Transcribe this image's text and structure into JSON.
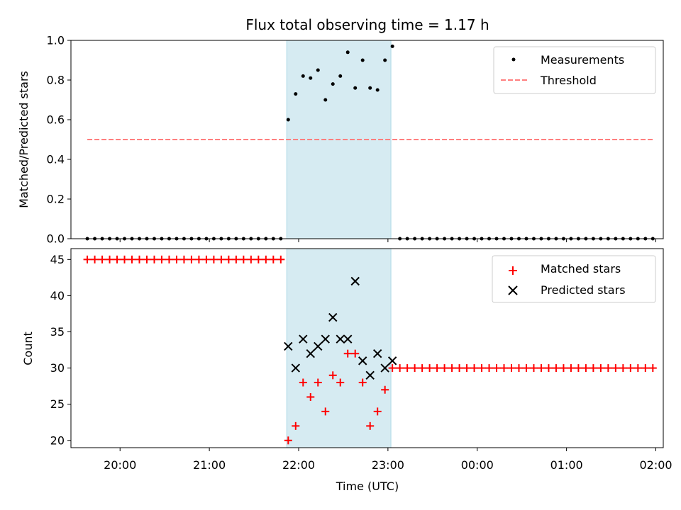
{
  "chart_data": [
    {
      "panel": "top",
      "type": "scatter",
      "title": "Flux total observing time = 1.17 h",
      "xlabel": "",
      "ylabel": "Matched/Predicted stars",
      "ylim": [
        0,
        1.0
      ],
      "yticks": [
        0.0,
        0.2,
        0.4,
        0.6,
        0.8,
        1.0
      ],
      "ytick_labels": [
        "0.0",
        "0.2",
        "0.4",
        "0.6",
        "0.8",
        "1.0"
      ],
      "shaded_interval": {
        "start": "21:52",
        "end": "23:02",
        "color": "#add8e6"
      },
      "legend": {
        "placement": "upper right",
        "entries": [
          "Measurements",
          "Threshold"
        ]
      },
      "series": [
        {
          "name": "Measurements",
          "kind": "points",
          "color": "#000000",
          "times": [
            "19:38",
            "19:43",
            "19:48",
            "19:53",
            "19:58",
            "20:03",
            "20:08",
            "20:13",
            "20:18",
            "20:23",
            "20:28",
            "20:33",
            "20:38",
            "20:43",
            "20:48",
            "20:53",
            "20:58",
            "21:03",
            "21:08",
            "21:13",
            "21:18",
            "21:23",
            "21:28",
            "21:33",
            "21:38",
            "21:43",
            "21:48",
            "21:53",
            "21:58",
            "22:03",
            "22:08",
            "22:13",
            "22:18",
            "22:23",
            "22:28",
            "22:33",
            "22:38",
            "22:43",
            "22:48",
            "22:53",
            "22:58",
            "23:03",
            "23:08",
            "23:13",
            "23:18",
            "23:23",
            "23:28",
            "23:33",
            "23:38",
            "23:43",
            "23:48",
            "23:53",
            "23:58",
            "00:03",
            "00:08",
            "00:13",
            "00:18",
            "00:23",
            "00:28",
            "00:33",
            "00:38",
            "00:43",
            "00:48",
            "00:53",
            "00:58",
            "01:03",
            "01:08",
            "01:13",
            "01:18",
            "01:23",
            "01:28",
            "01:33",
            "01:38",
            "01:43",
            "01:48",
            "01:53",
            "01:58"
          ],
          "values": [
            0,
            0,
            0,
            0,
            0,
            0,
            0,
            0,
            0,
            0,
            0,
            0,
            0,
            0,
            0,
            0,
            0,
            0,
            0,
            0,
            0,
            0,
            0,
            0,
            0,
            0,
            0,
            0.6,
            0.73,
            0.82,
            0.81,
            0.85,
            0.7,
            0.78,
            0.82,
            0.94,
            0.76,
            0.9,
            0.76,
            0.75,
            0.9,
            0.97,
            0,
            0,
            0,
            0,
            0,
            0,
            0,
            0,
            0,
            0,
            0,
            0,
            0,
            0,
            0,
            0,
            0,
            0,
            0,
            0,
            0,
            0,
            0,
            0,
            0,
            0,
            0,
            0,
            0,
            0,
            0,
            0,
            0,
            0,
            0
          ]
        },
        {
          "name": "Threshold",
          "kind": "dashed-line",
          "color": "#ff7f7f",
          "x": [
            "19:38",
            "01:58"
          ],
          "values": [
            0.5,
            0.5
          ]
        }
      ]
    },
    {
      "panel": "bottom",
      "type": "scatter",
      "title": "",
      "xlabel": "Time (UTC)",
      "ylabel": "Count",
      "ylim": [
        19,
        46.5
      ],
      "yticks": [
        20,
        25,
        30,
        35,
        40,
        45
      ],
      "ytick_labels": [
        "20",
        "25",
        "30",
        "35",
        "40",
        "45"
      ],
      "xlim": [
        "19:27",
        "02:05"
      ],
      "xticks": [
        "20:00",
        "21:00",
        "22:00",
        "23:00",
        "00:00",
        "01:00",
        "02:00"
      ],
      "shaded_interval": {
        "start": "21:52",
        "end": "23:02",
        "color": "#add8e6"
      },
      "legend": {
        "placement": "upper right",
        "entries": [
          "Matched stars",
          "Predicted stars"
        ]
      },
      "series": [
        {
          "name": "Matched stars",
          "marker": "plus",
          "color": "#ff0000",
          "times": [
            "19:38",
            "19:43",
            "19:48",
            "19:53",
            "19:58",
            "20:03",
            "20:08",
            "20:13",
            "20:18",
            "20:23",
            "20:28",
            "20:33",
            "20:38",
            "20:43",
            "20:48",
            "20:53",
            "20:58",
            "21:03",
            "21:08",
            "21:13",
            "21:18",
            "21:23",
            "21:28",
            "21:33",
            "21:38",
            "21:43",
            "21:48",
            "21:53",
            "21:58",
            "22:03",
            "22:08",
            "22:13",
            "22:18",
            "22:23",
            "22:28",
            "22:33",
            "22:38",
            "22:43",
            "22:48",
            "22:53",
            "22:58",
            "23:03",
            "23:08",
            "23:13",
            "23:18",
            "23:23",
            "23:28",
            "23:33",
            "23:38",
            "23:43",
            "23:48",
            "23:53",
            "23:58",
            "00:03",
            "00:08",
            "00:13",
            "00:18",
            "00:23",
            "00:28",
            "00:33",
            "00:38",
            "00:43",
            "00:48",
            "00:53",
            "00:58",
            "01:03",
            "01:08",
            "01:13",
            "01:18",
            "01:23",
            "01:28",
            "01:33",
            "01:38",
            "01:43",
            "01:48",
            "01:53",
            "01:58"
          ],
          "values": [
            45,
            45,
            45,
            45,
            45,
            45,
            45,
            45,
            45,
            45,
            45,
            45,
            45,
            45,
            45,
            45,
            45,
            45,
            45,
            45,
            45,
            45,
            45,
            45,
            45,
            45,
            45,
            20,
            22,
            28,
            26,
            28,
            24,
            29,
            28,
            32,
            32,
            28,
            22,
            24,
            27,
            30,
            30,
            30,
            30,
            30,
            30,
            30,
            30,
            30,
            30,
            30,
            30,
            30,
            30,
            30,
            30,
            30,
            30,
            30,
            30,
            30,
            30,
            30,
            30,
            30,
            30,
            30,
            30,
            30,
            30,
            30,
            30,
            30,
            30,
            30,
            30
          ]
        },
        {
          "name": "Predicted stars",
          "marker": "x",
          "color": "#000000",
          "times": [
            "21:53",
            "21:58",
            "22:03",
            "22:08",
            "22:13",
            "22:18",
            "22:23",
            "22:28",
            "22:33",
            "22:38",
            "22:43",
            "22:48",
            "22:53",
            "22:58",
            "23:03"
          ],
          "values": [
            33,
            30,
            34,
            32,
            33,
            34,
            37,
            34,
            34,
            42,
            31,
            29,
            32,
            30,
            31
          ]
        }
      ]
    }
  ]
}
